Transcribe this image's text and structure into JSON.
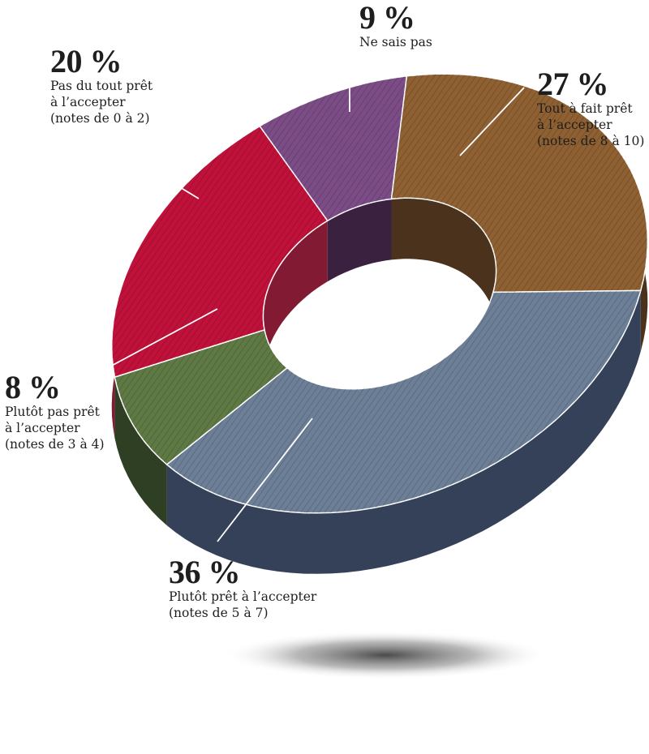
{
  "chart_data": {
    "type": "pie",
    "style": "3d-donut",
    "slices": [
      {
        "value": 9,
        "percent_label": "9 %",
        "label_lines": [
          "Ne sais pas"
        ],
        "top_color": "#7b4c85",
        "side_color": "#3b2140"
      },
      {
        "value": 27,
        "percent_label": "27 %",
        "label_lines": [
          "Tout à fait prêt",
          "à l’accepter",
          "(notes de 8 à 10)"
        ],
        "top_color": "#8e6032",
        "side_color": "#4a321c"
      },
      {
        "value": 36,
        "percent_label": "36 %",
        "label_lines": [
          "Plutôt prêt à l’accepter",
          "(notes de 5 à 7)"
        ],
        "top_color": "#6c7f97",
        "side_color": "#344158"
      },
      {
        "value": 8,
        "percent_label": "8 %",
        "label_lines": [
          "Plutôt pas prêt",
          "à l’accepter",
          "(notes de 3 à 4)"
        ],
        "top_color": "#5e7944",
        "side_color": "#2f3f24"
      },
      {
        "value": 20,
        "percent_label": "20 %",
        "label_lines": [
          "Pas du tout prêt",
          "à l’accepter",
          "(notes de 0 à 2)"
        ],
        "top_color": "#c0113a",
        "side_color": "#821a33"
      }
    ]
  }
}
